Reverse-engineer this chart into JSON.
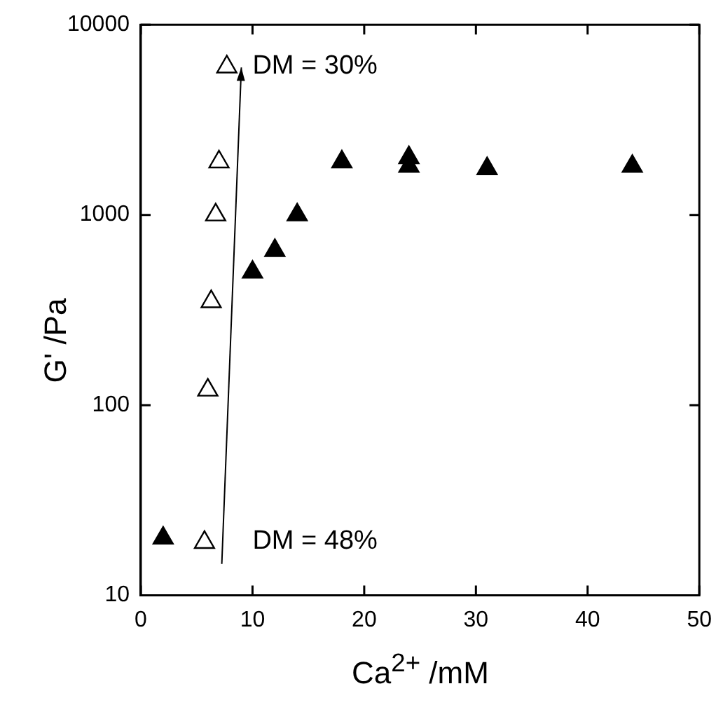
{
  "chart_data": {
    "type": "scatter",
    "xlabel": "Ca$^{2+}$ /mM",
    "ylabel": "G' /Pa",
    "log": "y",
    "grid": false,
    "marker": "triangle",
    "xlim": [
      0,
      50
    ],
    "xticks": [
      0,
      10,
      20,
      30,
      40,
      50
    ],
    "ylim": [
      10,
      10000
    ],
    "yticks": [
      10,
      100,
      1000,
      10000
    ],
    "series": [
      {
        "color": "#000000",
        "x": [
          2,
          10,
          12,
          14,
          18,
          24,
          24,
          31,
          44
        ],
        "values": [
          20,
          500,
          650,
          1000,
          1900,
          2000,
          1800,
          1750,
          1800
        ]
      },
      {
        "color": "#000000",
        "x": [
          5.7,
          6,
          6.3,
          6.7,
          7,
          7.7
        ],
        "values": [
          19,
          120,
          350,
          1000,
          1900,
          6000
        ]
      }
    ],
    "annotations": [
      "DM = 30%",
      "DM = 48%"
    ]
  }
}
